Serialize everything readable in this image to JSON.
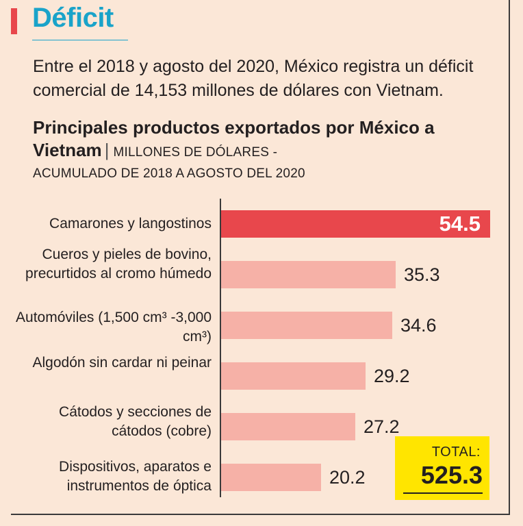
{
  "headline": "Déficit",
  "intro": "Entre el 2018 y agosto del 2020, México registra un déficit comercial de 14,153 millones de dólares con Vietnam.",
  "colors": {
    "accent": "#e8474c",
    "bar": "#f6b1a7",
    "headline": "#1aa3c9",
    "total_bg": "#ffe500",
    "background": "#fbe7d7"
  },
  "chart_data": {
    "type": "bar",
    "orientation": "horizontal",
    "title": "Principales productos exportados por México a Vietnam",
    "subtitle_part1": "MILLONES DE DÓLARES -",
    "subtitle_part2": "ACUMULADO DE 2018 A AGOSTO DEL 2020",
    "categories": [
      "Camarones y langostinos",
      "Cueros y pieles de bovino, precurtidos al cromo húmedo",
      "Automóviles (1,500 cm³ -3,000 cm³)",
      "Algodón sin cardar ni peinar",
      "Cátodos y secciones de cátodos (cobre)",
      "Dispositivos, aparatos e instrumentos de óptica"
    ],
    "values": [
      54.5,
      35.3,
      34.6,
      29.2,
      27.2,
      20.2
    ],
    "value_labels": [
      "54.5",
      "35.3",
      "34.6",
      "29.2",
      "27.2",
      "20.2"
    ],
    "highlight_index": 0,
    "xlim": [
      0,
      54.5
    ],
    "xlabel": "",
    "ylabel": "",
    "total_label": "TOTAL:",
    "total_value": "525.3"
  }
}
